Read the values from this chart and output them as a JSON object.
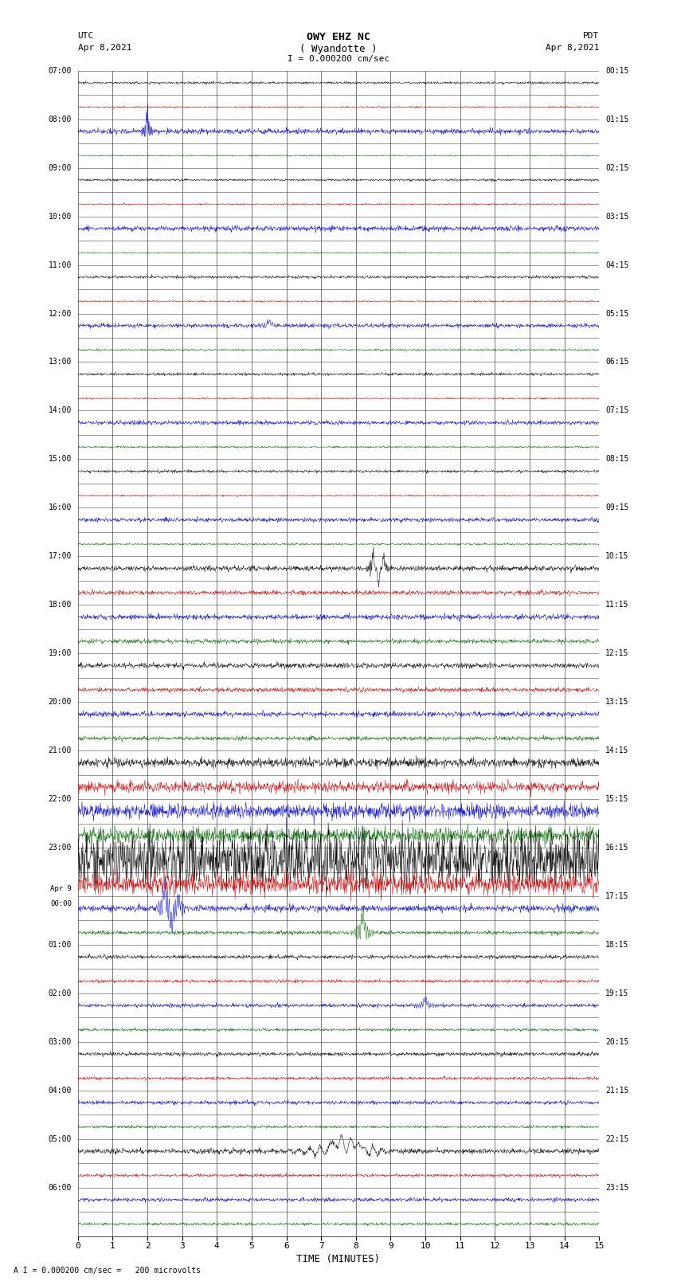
{
  "title_line1": "OWY EHZ NC",
  "title_line2": "( Wyandotte )",
  "scale_text": "I = 0.000200 cm/sec",
  "bottom_text": "A I = 0.000200 cm/sec =   200 microvolts",
  "utc_label": "UTC",
  "utc_date": "Apr 8,2021",
  "pdt_label": "PDT",
  "pdt_date": "Apr 8,2021",
  "xlabel": "TIME (MINUTES)",
  "left_times": [
    "07:00",
    "",
    "08:00",
    "",
    "09:00",
    "",
    "10:00",
    "",
    "11:00",
    "",
    "12:00",
    "",
    "13:00",
    "",
    "14:00",
    "",
    "15:00",
    "",
    "16:00",
    "",
    "17:00",
    "",
    "18:00",
    "",
    "19:00",
    "",
    "20:00",
    "",
    "21:00",
    "",
    "22:00",
    "",
    "23:00",
    "",
    "Apr 9\n00:00",
    "",
    "01:00",
    "",
    "02:00",
    "",
    "03:00",
    "",
    "04:00",
    "",
    "05:00",
    "",
    "06:00",
    ""
  ],
  "right_times": [
    "00:15",
    "",
    "01:15",
    "",
    "02:15",
    "",
    "03:15",
    "",
    "04:15",
    "",
    "05:15",
    "",
    "06:15",
    "",
    "07:15",
    "",
    "08:15",
    "",
    "09:15",
    "",
    "10:15",
    "",
    "11:15",
    "",
    "12:15",
    "",
    "13:15",
    "",
    "14:15",
    "",
    "15:15",
    "",
    "16:15",
    "",
    "17:15",
    "",
    "18:15",
    "",
    "19:15",
    "",
    "20:15",
    "",
    "21:15",
    "",
    "22:15",
    "",
    "23:15",
    ""
  ],
  "n_rows": 48,
  "x_min": 0,
  "x_max": 15,
  "colors": {
    "black": "#000000",
    "red": "#cc0000",
    "blue": "#0000cc",
    "green": "#006600",
    "background": "#ffffff",
    "grid": "#888888"
  },
  "seed": 12345
}
